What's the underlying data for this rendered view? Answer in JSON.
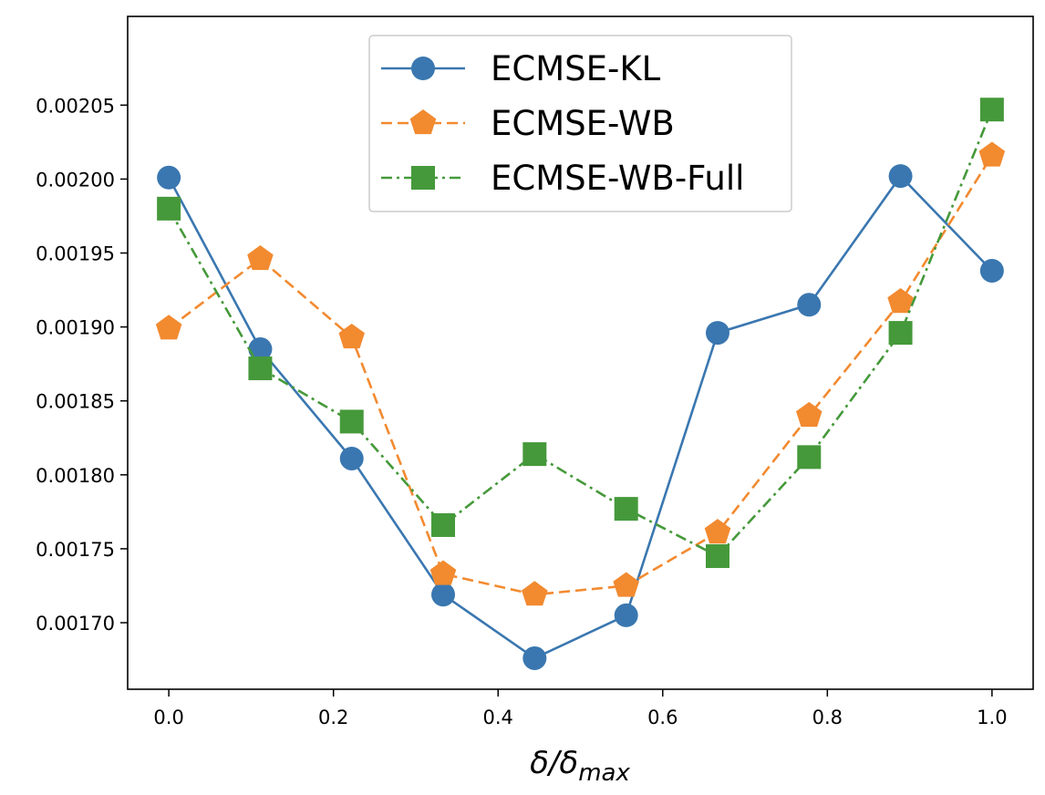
{
  "chart_data": {
    "type": "line",
    "title": "",
    "xlabel": "δ/δmax",
    "xlabel_main": "δ/δ",
    "xlabel_sub": "max",
    "ylabel": "",
    "xlim": [
      -0.05,
      1.05
    ],
    "ylim": [
      0.001655,
      0.00211
    ],
    "x_ticks": [
      0.0,
      0.2,
      0.4,
      0.6,
      0.8,
      1.0
    ],
    "x_tick_labels": [
      "0.0",
      "0.2",
      "0.4",
      "0.6",
      "0.8",
      "1.0"
    ],
    "y_ticks": [
      0.0017,
      0.00175,
      0.0018,
      0.00185,
      0.0019,
      0.00195,
      0.002,
      0.00205
    ],
    "y_tick_labels": [
      "0.00170",
      "0.00175",
      "0.00180",
      "0.00185",
      "0.00190",
      "0.00195",
      "0.00200",
      "0.00205"
    ],
    "grid": false,
    "legend_position": "top-center",
    "x": [
      0.0,
      0.1111,
      0.2222,
      0.3333,
      0.4444,
      0.5556,
      0.6667,
      0.7778,
      0.8889,
      1.0
    ],
    "series": [
      {
        "name": "ECMSE-KL",
        "color": "#3a77b0",
        "marker": "circle",
        "dash": "solid",
        "values": [
          0.002001,
          0.001885,
          0.001811,
          0.001719,
          0.001676,
          0.001705,
          0.001896,
          0.001915,
          0.002002,
          0.001938
        ]
      },
      {
        "name": "ECMSE-WB",
        "color": "#f28a30",
        "marker": "pentagon",
        "dash": "dashed",
        "values": [
          0.001899,
          0.001946,
          0.001893,
          0.001733,
          0.001719,
          0.001725,
          0.001761,
          0.00184,
          0.001917,
          0.002016
        ]
      },
      {
        "name": "ECMSE-WB-Full",
        "color": "#45993a",
        "marker": "square",
        "dash": "dashdot",
        "values": [
          0.00198,
          0.001872,
          0.001836,
          0.001766,
          0.001814,
          0.001777,
          0.001745,
          0.001812,
          0.001896,
          0.002047
        ]
      }
    ]
  }
}
